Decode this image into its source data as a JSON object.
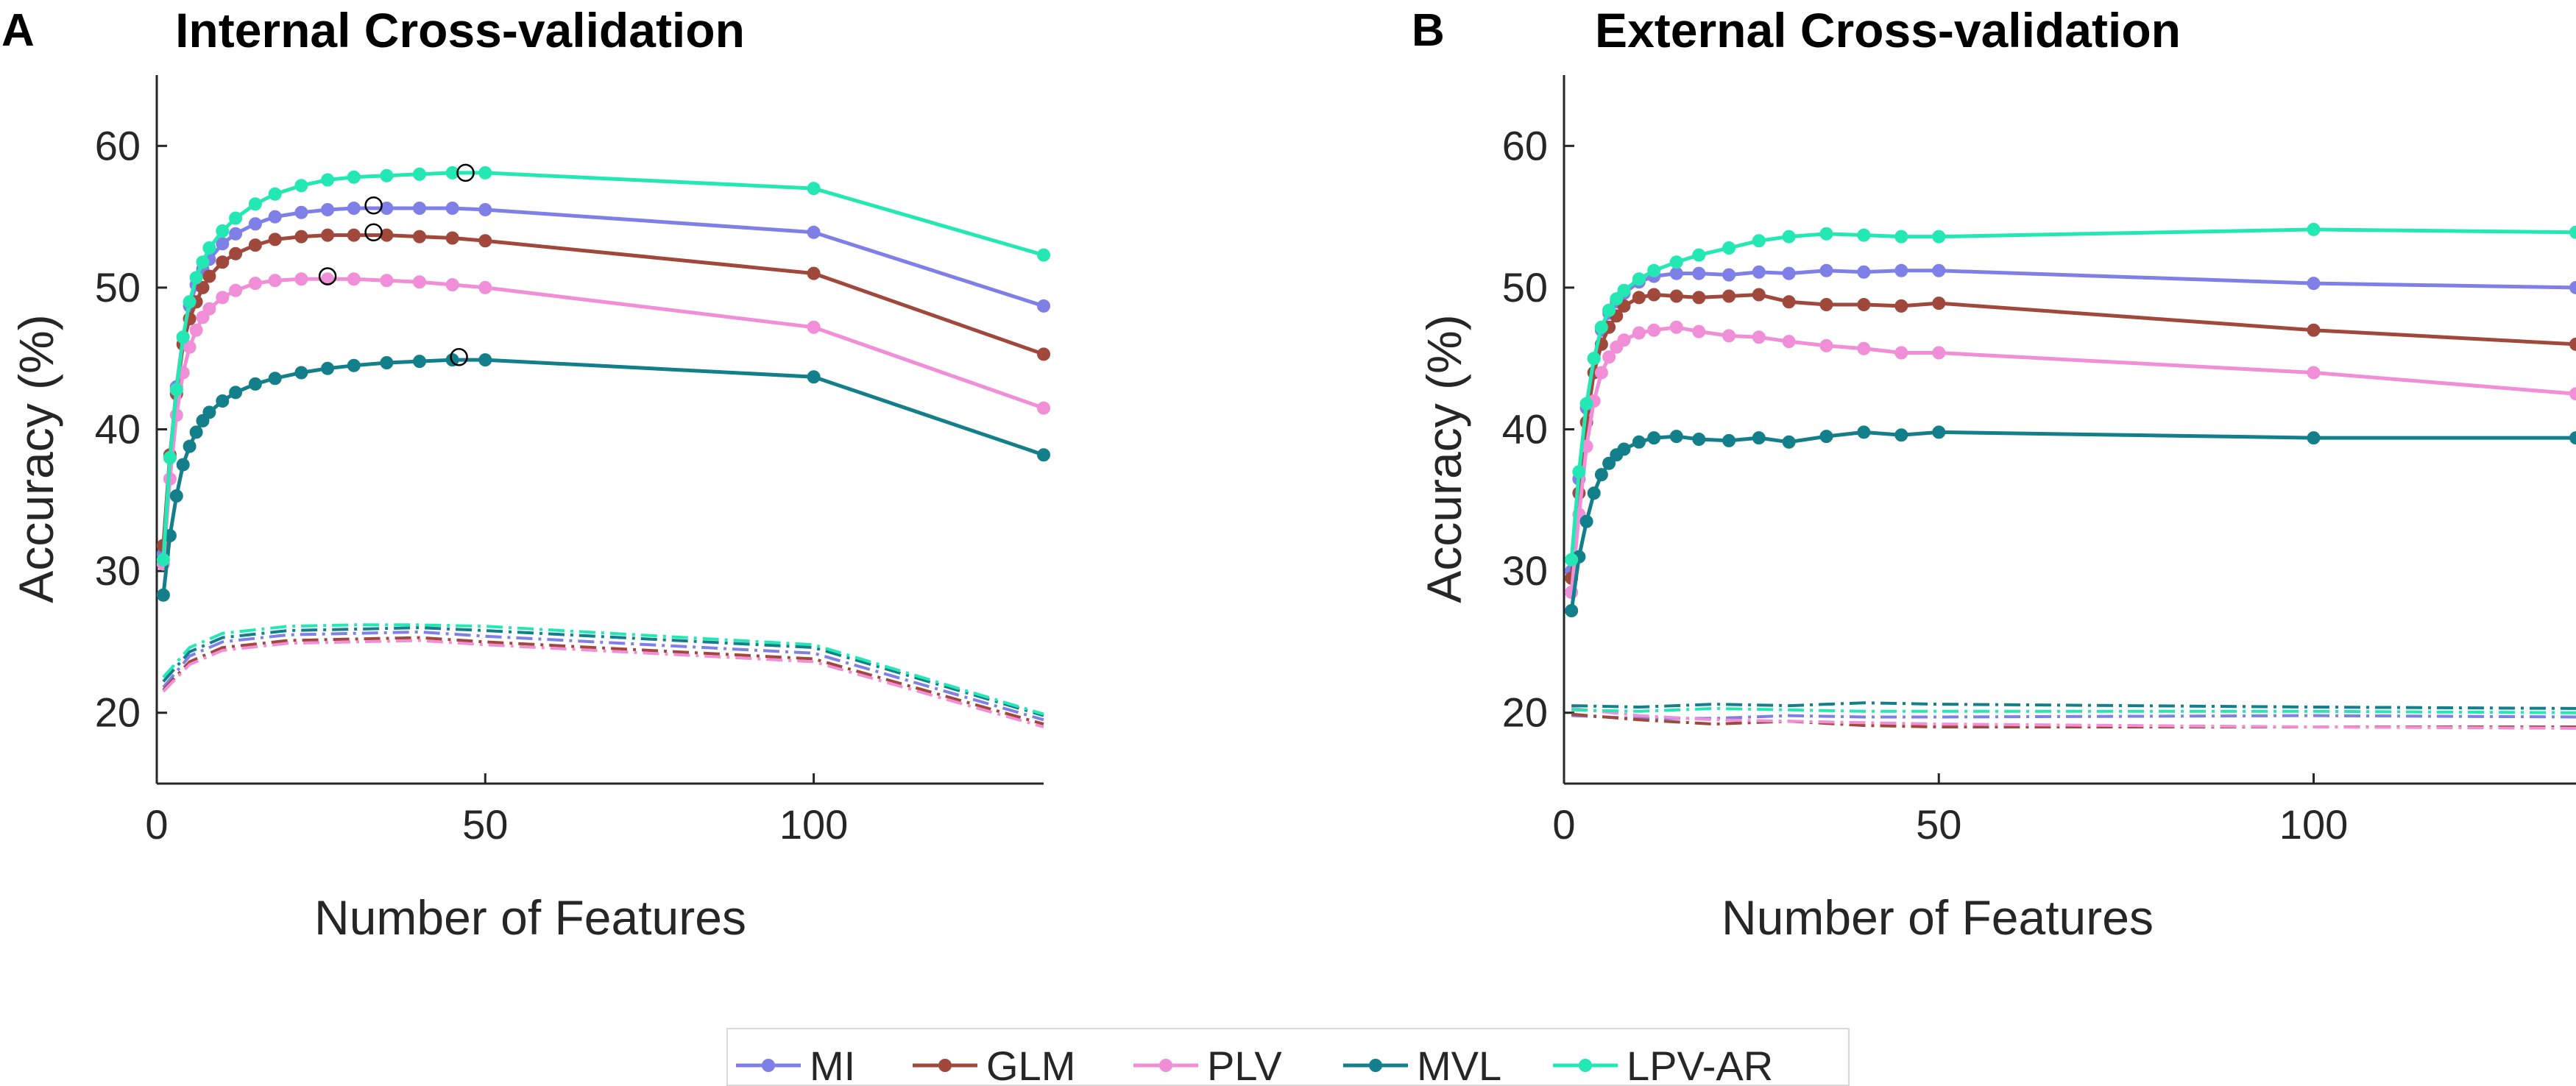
{
  "panel_letters": [
    "A",
    "B"
  ],
  "legend": [
    {
      "name": "MI",
      "color": "#7f7fe8"
    },
    {
      "name": "GLM",
      "color": "#a1483c"
    },
    {
      "name": "PLV",
      "color": "#f08ed8"
    },
    {
      "name": "MVL",
      "color": "#137f8a"
    },
    {
      "name": "LPV-AR",
      "color": "#24e8b4"
    }
  ],
  "chart_data": [
    {
      "type": "line",
      "panel": "A",
      "title": "Internal Cross-validation",
      "xlabel": "Number of Features",
      "ylabel": "Accuracy (%)",
      "xlim": [
        0,
        135
      ],
      "ylim": [
        15,
        65
      ],
      "xticks": [
        0,
        50,
        100
      ],
      "yticks": [
        20,
        30,
        40,
        50,
        60
      ],
      "series": [
        {
          "name": "MI",
          "color": "#7f7fe8",
          "x": [
            1,
            2,
            3,
            4,
            5,
            6,
            7,
            8,
            10,
            12,
            15,
            18,
            22,
            26,
            30,
            35,
            40,
            45,
            50,
            100,
            135
          ],
          "y": [
            31.2,
            38,
            43,
            46.5,
            48.7,
            50.2,
            51.3,
            52,
            53.1,
            53.8,
            54.5,
            55,
            55.3,
            55.5,
            55.6,
            55.6,
            55.6,
            55.6,
            55.5,
            53.9,
            48.7
          ],
          "peak": [
            33,
            55.8
          ]
        },
        {
          "name": "GLM",
          "color": "#a1483c",
          "x": [
            1,
            2,
            3,
            4,
            5,
            6,
            7,
            8,
            10,
            12,
            15,
            18,
            22,
            26,
            30,
            35,
            40,
            45,
            50,
            100,
            135
          ],
          "y": [
            31.8,
            38.2,
            42.5,
            46,
            47.8,
            49,
            50,
            50.8,
            51.8,
            52.4,
            53,
            53.4,
            53.6,
            53.7,
            53.7,
            53.7,
            53.6,
            53.5,
            53.3,
            51,
            45.3
          ],
          "peak": [
            33,
            53.9
          ]
        },
        {
          "name": "PLV",
          "color": "#f08ed8",
          "x": [
            1,
            2,
            3,
            4,
            5,
            6,
            7,
            8,
            10,
            12,
            15,
            18,
            22,
            26,
            30,
            35,
            40,
            45,
            50,
            100,
            135
          ],
          "y": [
            30.5,
            36.5,
            41,
            44,
            45.8,
            47,
            47.9,
            48.5,
            49.3,
            49.8,
            50.3,
            50.5,
            50.6,
            50.6,
            50.6,
            50.5,
            50.4,
            50.2,
            50,
            47.2,
            41.5
          ],
          "peak": [
            26,
            50.8
          ]
        },
        {
          "name": "MVL",
          "color": "#137f8a",
          "x": [
            1,
            2,
            3,
            4,
            5,
            6,
            7,
            8,
            10,
            12,
            15,
            18,
            22,
            26,
            30,
            35,
            40,
            45,
            50,
            100,
            135
          ],
          "y": [
            28.3,
            32.5,
            35.3,
            37.5,
            38.8,
            39.8,
            40.6,
            41.2,
            42,
            42.6,
            43.2,
            43.6,
            44,
            44.3,
            44.5,
            44.7,
            44.8,
            44.9,
            44.9,
            43.7,
            38.2
          ],
          "peak": [
            46,
            45.1
          ]
        },
        {
          "name": "LPV-AR",
          "color": "#24e8b4",
          "x": [
            1,
            2,
            3,
            4,
            5,
            6,
            7,
            8,
            10,
            12,
            15,
            18,
            22,
            26,
            30,
            35,
            40,
            45,
            50,
            100,
            135
          ],
          "y": [
            30.8,
            38,
            42.8,
            46.5,
            49,
            50.7,
            51.8,
            52.8,
            54,
            54.9,
            55.9,
            56.6,
            57.2,
            57.6,
            57.8,
            57.9,
            58,
            58.1,
            58.1,
            57,
            52.3
          ],
          "peak": [
            47,
            58.1
          ]
        }
      ],
      "chance_series": [
        {
          "name": "MI",
          "color": "#7f7fe8",
          "x": [
            1,
            5,
            10,
            20,
            30,
            40,
            50,
            100,
            135
          ],
          "y": [
            21.8,
            24,
            25,
            25.5,
            25.6,
            25.7,
            25.4,
            24.2,
            19.5
          ]
        },
        {
          "name": "GLM",
          "color": "#a1483c",
          "x": [
            1,
            5,
            10,
            20,
            30,
            40,
            50,
            100,
            135
          ],
          "y": [
            21.6,
            23.6,
            24.6,
            25.1,
            25.2,
            25.3,
            25,
            23.8,
            19.2
          ]
        },
        {
          "name": "PLV",
          "color": "#f08ed8",
          "x": [
            1,
            5,
            10,
            20,
            30,
            40,
            50,
            100,
            135
          ],
          "y": [
            21.5,
            23.4,
            24.4,
            24.9,
            25,
            25.1,
            24.8,
            23.6,
            19
          ]
        },
        {
          "name": "MVL",
          "color": "#137f8a",
          "x": [
            1,
            5,
            10,
            20,
            30,
            40,
            50,
            100,
            135
          ],
          "y": [
            22.2,
            24.3,
            25.3,
            25.8,
            25.9,
            26,
            25.8,
            24.6,
            19.8
          ]
        },
        {
          "name": "LPV-AR",
          "color": "#24e8b4",
          "x": [
            1,
            5,
            10,
            20,
            30,
            40,
            50,
            100,
            135
          ],
          "y": [
            22.5,
            24.6,
            25.6,
            26.1,
            26.2,
            26.2,
            26.1,
            24.8,
            19.9
          ]
        }
      ]
    },
    {
      "type": "line",
      "panel": "B",
      "title": "External Cross-validation",
      "xlabel": "Number of Features",
      "ylabel": "Accuracy (%)",
      "xlim": [
        0,
        135
      ],
      "ylim": [
        15,
        65
      ],
      "xticks": [
        0,
        50,
        100
      ],
      "yticks": [
        20,
        30,
        40,
        50,
        60
      ],
      "series": [
        {
          "name": "MI",
          "color": "#7f7fe8",
          "x": [
            1,
            2,
            3,
            4,
            5,
            6,
            7,
            8,
            10,
            12,
            15,
            18,
            22,
            26,
            30,
            35,
            40,
            45,
            50,
            100,
            135
          ],
          "y": [
            30,
            36.5,
            41.5,
            45,
            47,
            48.2,
            49,
            49.6,
            50.4,
            50.8,
            51,
            51,
            50.9,
            51.1,
            51,
            51.2,
            51.1,
            51.2,
            51.2,
            50.3,
            50
          ]
        },
        {
          "name": "GLM",
          "color": "#a1483c",
          "x": [
            1,
            2,
            3,
            4,
            5,
            6,
            7,
            8,
            10,
            12,
            15,
            18,
            22,
            26,
            30,
            35,
            40,
            45,
            50,
            100,
            135
          ],
          "y": [
            29.5,
            35.5,
            40.5,
            44,
            46,
            47.2,
            48,
            48.7,
            49.3,
            49.5,
            49.4,
            49.3,
            49.4,
            49.5,
            49,
            48.8,
            48.8,
            48.7,
            48.9,
            47,
            46
          ]
        },
        {
          "name": "PLV",
          "color": "#f08ed8",
          "x": [
            1,
            2,
            3,
            4,
            5,
            6,
            7,
            8,
            10,
            12,
            15,
            18,
            22,
            26,
            30,
            35,
            40,
            45,
            50,
            100,
            135
          ],
          "y": [
            28.5,
            34,
            38.8,
            42,
            44,
            45.1,
            45.8,
            46.3,
            46.8,
            47,
            47.2,
            46.9,
            46.6,
            46.5,
            46.2,
            45.9,
            45.7,
            45.4,
            45.4,
            44,
            42.5
          ]
        },
        {
          "name": "MVL",
          "color": "#137f8a",
          "x": [
            1,
            2,
            3,
            4,
            5,
            6,
            7,
            8,
            10,
            12,
            15,
            18,
            22,
            26,
            30,
            35,
            40,
            45,
            50,
            100,
            135
          ],
          "y": [
            27.2,
            31,
            33.5,
            35.5,
            36.8,
            37.6,
            38.2,
            38.6,
            39.1,
            39.4,
            39.5,
            39.3,
            39.2,
            39.4,
            39.1,
            39.5,
            39.8,
            39.6,
            39.8,
            39.4,
            39.4
          ]
        },
        {
          "name": "LPV-AR",
          "color": "#24e8b4",
          "x": [
            1,
            2,
            3,
            4,
            5,
            6,
            7,
            8,
            10,
            12,
            15,
            18,
            22,
            26,
            30,
            35,
            40,
            45,
            50,
            100,
            135
          ],
          "y": [
            30.8,
            37,
            41.8,
            45,
            47.2,
            48.4,
            49.2,
            49.8,
            50.6,
            51.2,
            51.8,
            52.3,
            52.8,
            53.3,
            53.6,
            53.8,
            53.7,
            53.6,
            53.6,
            54.1,
            53.9
          ]
        }
      ],
      "chance_series": [
        {
          "name": "MI",
          "color": "#7f7fe8",
          "x": [
            1,
            10,
            20,
            30,
            40,
            50,
            100,
            135
          ],
          "y": [
            19.8,
            19.6,
            19.6,
            19.8,
            19.7,
            19.7,
            19.8,
            19.7
          ]
        },
        {
          "name": "GLM",
          "color": "#a1483c",
          "x": [
            1,
            10,
            20,
            30,
            40,
            50,
            100,
            135
          ],
          "y": [
            19.9,
            19.5,
            19.2,
            19.4,
            19.1,
            19,
            19,
            19
          ]
        },
        {
          "name": "PLV",
          "color": "#f08ed8",
          "x": [
            1,
            10,
            20,
            30,
            40,
            50,
            100,
            135
          ],
          "y": [
            20.3,
            19.8,
            19.5,
            19.4,
            19.3,
            19.2,
            19,
            18.9
          ]
        },
        {
          "name": "MVL",
          "color": "#137f8a",
          "x": [
            1,
            10,
            20,
            30,
            40,
            50,
            100,
            135
          ],
          "y": [
            20.5,
            20.4,
            20.6,
            20.5,
            20.7,
            20.6,
            20.4,
            20.3
          ]
        },
        {
          "name": "LPV-AR",
          "color": "#24e8b4",
          "x": [
            1,
            10,
            20,
            30,
            40,
            50,
            100,
            135
          ],
          "y": [
            20.2,
            20.1,
            20.3,
            20.2,
            20.1,
            20.1,
            20.1,
            20
          ]
        }
      ]
    }
  ]
}
